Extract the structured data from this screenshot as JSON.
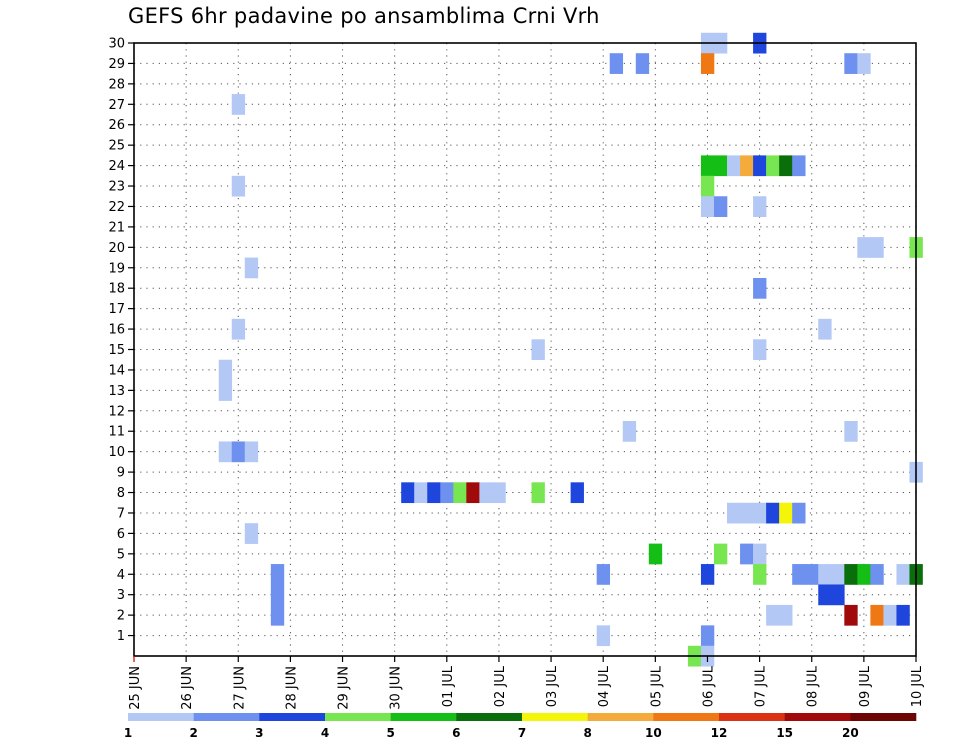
{
  "chart_data": {
    "type": "heatmap",
    "title": "GEFS 6hr padavine po ansamblima Crni Vrh",
    "xlabel": "",
    "ylabel": "",
    "x_tick_labels": [
      "25 JUN",
      "26 JUN",
      "27 JUN",
      "28 JUN",
      "29 JUN",
      "30 JUN",
      "01 JUL",
      "02 JUL",
      "03 JUL",
      "04 JUL",
      "05 JUL",
      "06 JUL",
      "07 JUL",
      "08 JUL",
      "09 JUL",
      "10 JUL"
    ],
    "x_range_steps": [
      0,
      60
    ],
    "steps_per_day": 4,
    "y_tick_labels": [
      "1",
      "2",
      "3",
      "4",
      "5",
      "6",
      "7",
      "8",
      "9",
      "10",
      "11",
      "12",
      "13",
      "14",
      "15",
      "16",
      "17",
      "18",
      "19",
      "20",
      "21",
      "22",
      "23",
      "24",
      "25",
      "26",
      "27",
      "28",
      "29",
      "30"
    ],
    "y_range_members": [
      0,
      30
    ],
    "grid": true,
    "colorbar": {
      "labels": [
        "1",
        "2",
        "3",
        "4",
        "5",
        "6",
        "7",
        "8",
        "10",
        "12",
        "15",
        "20"
      ],
      "colors": [
        "#b4c8f5",
        "#6e91f0",
        "#1e46dc",
        "#78e650",
        "#14be14",
        "#0a6e0a",
        "#f5f50a",
        "#f5aa3c",
        "#f07814",
        "#dc3214",
        "#a00a0a",
        "#6e0505"
      ]
    },
    "cells": [
      {
        "member": 30,
        "step": 44,
        "level": 1
      },
      {
        "member": 30,
        "step": 45,
        "level": 1
      },
      {
        "member": 30,
        "step": 48,
        "level": 3
      },
      {
        "member": 29,
        "step": 37,
        "level": 2
      },
      {
        "member": 29,
        "step": 39,
        "level": 2
      },
      {
        "member": 29,
        "step": 44,
        "level": 9
      },
      {
        "member": 29,
        "step": 55,
        "level": 2
      },
      {
        "member": 29,
        "step": 56,
        "level": 1
      },
      {
        "member": 27,
        "step": 8,
        "level": 1
      },
      {
        "member": 24,
        "step": 44,
        "level": 5
      },
      {
        "member": 24,
        "step": 45,
        "level": 5
      },
      {
        "member": 24,
        "step": 46,
        "level": 1
      },
      {
        "member": 24,
        "step": 47,
        "level": 8
      },
      {
        "member": 24,
        "step": 48,
        "level": 3
      },
      {
        "member": 24,
        "step": 49,
        "level": 4
      },
      {
        "member": 24,
        "step": 50,
        "level": 6
      },
      {
        "member": 24,
        "step": 51,
        "level": 2
      },
      {
        "member": 23,
        "step": 8,
        "level": 1
      },
      {
        "member": 23,
        "step": 44,
        "level": 4
      },
      {
        "member": 22,
        "step": 44,
        "level": 1
      },
      {
        "member": 22,
        "step": 45,
        "level": 2
      },
      {
        "member": 22,
        "step": 48,
        "level": 1
      },
      {
        "member": 20,
        "step": 56,
        "level": 1
      },
      {
        "member": 20,
        "step": 57,
        "level": 1
      },
      {
        "member": 20,
        "step": 60,
        "level": 4
      },
      {
        "member": 19,
        "step": 9,
        "level": 1
      },
      {
        "member": 18,
        "step": 48,
        "level": 2
      },
      {
        "member": 16,
        "step": 8,
        "level": 1
      },
      {
        "member": 16,
        "step": 53,
        "level": 1
      },
      {
        "member": 15,
        "step": 31,
        "level": 1
      },
      {
        "member": 15,
        "step": 48,
        "level": 1
      },
      {
        "member": 14,
        "step": 7,
        "level": 1
      },
      {
        "member": 13,
        "step": 7,
        "level": 1
      },
      {
        "member": 11,
        "step": 38,
        "level": 1
      },
      {
        "member": 11,
        "step": 55,
        "level": 1
      },
      {
        "member": 10,
        "step": 7,
        "level": 1
      },
      {
        "member": 10,
        "step": 8,
        "level": 2
      },
      {
        "member": 10,
        "step": 9,
        "level": 1
      },
      {
        "member": 9,
        "step": 60,
        "level": 1
      },
      {
        "member": 8,
        "step": 21,
        "level": 3
      },
      {
        "member": 8,
        "step": 22,
        "level": 1
      },
      {
        "member": 8,
        "step": 23,
        "level": 3
      },
      {
        "member": 8,
        "step": 24,
        "level": 2
      },
      {
        "member": 8,
        "step": 25,
        "level": 4
      },
      {
        "member": 8,
        "step": 26,
        "level": 11
      },
      {
        "member": 8,
        "step": 27,
        "level": 1
      },
      {
        "member": 8,
        "step": 28,
        "level": 1
      },
      {
        "member": 8,
        "step": 31,
        "level": 4
      },
      {
        "member": 8,
        "step": 34,
        "level": 3
      },
      {
        "member": 7,
        "step": 46,
        "level": 1
      },
      {
        "member": 7,
        "step": 47,
        "level": 1
      },
      {
        "member": 7,
        "step": 48,
        "level": 1
      },
      {
        "member": 7,
        "step": 49,
        "level": 3
      },
      {
        "member": 7,
        "step": 50,
        "level": 7
      },
      {
        "member": 7,
        "step": 51,
        "level": 2
      },
      {
        "member": 6,
        "step": 9,
        "level": 1
      },
      {
        "member": 5,
        "step": 40,
        "level": 5
      },
      {
        "member": 5,
        "step": 45,
        "level": 4
      },
      {
        "member": 5,
        "step": 47,
        "level": 2
      },
      {
        "member": 5,
        "step": 48,
        "level": 1
      },
      {
        "member": 4,
        "step": 11,
        "level": 2
      },
      {
        "member": 4,
        "step": 36,
        "level": 2
      },
      {
        "member": 4,
        "step": 44,
        "level": 3
      },
      {
        "member": 4,
        "step": 48,
        "level": 4
      },
      {
        "member": 4,
        "step": 51,
        "level": 2
      },
      {
        "member": 4,
        "step": 52,
        "level": 2
      },
      {
        "member": 4,
        "step": 53,
        "level": 1
      },
      {
        "member": 4,
        "step": 54,
        "level": 1
      },
      {
        "member": 4,
        "step": 55,
        "level": 6
      },
      {
        "member": 4,
        "step": 56,
        "level": 5
      },
      {
        "member": 4,
        "step": 57,
        "level": 2
      },
      {
        "member": 4,
        "step": 59,
        "level": 1
      },
      {
        "member": 4,
        "step": 60,
        "level": 6
      },
      {
        "member": 3,
        "step": 11,
        "level": 2
      },
      {
        "member": 3,
        "step": 53,
        "level": 3
      },
      {
        "member": 3,
        "step": 54,
        "level": 3
      },
      {
        "member": 2,
        "step": 11,
        "level": 2
      },
      {
        "member": 2,
        "step": 49,
        "level": 1
      },
      {
        "member": 2,
        "step": 50,
        "level": 1
      },
      {
        "member": 2,
        "step": 55,
        "level": 11
      },
      {
        "member": 2,
        "step": 57,
        "level": 9
      },
      {
        "member": 2,
        "step": 58,
        "level": 1
      },
      {
        "member": 2,
        "step": 59,
        "level": 3
      },
      {
        "member": 1,
        "step": 36,
        "level": 1
      },
      {
        "member": 1,
        "step": 44,
        "level": 2
      },
      {
        "member": 0,
        "step": 43,
        "level": 4
      },
      {
        "member": 0,
        "step": 44,
        "level": 1
      }
    ]
  }
}
